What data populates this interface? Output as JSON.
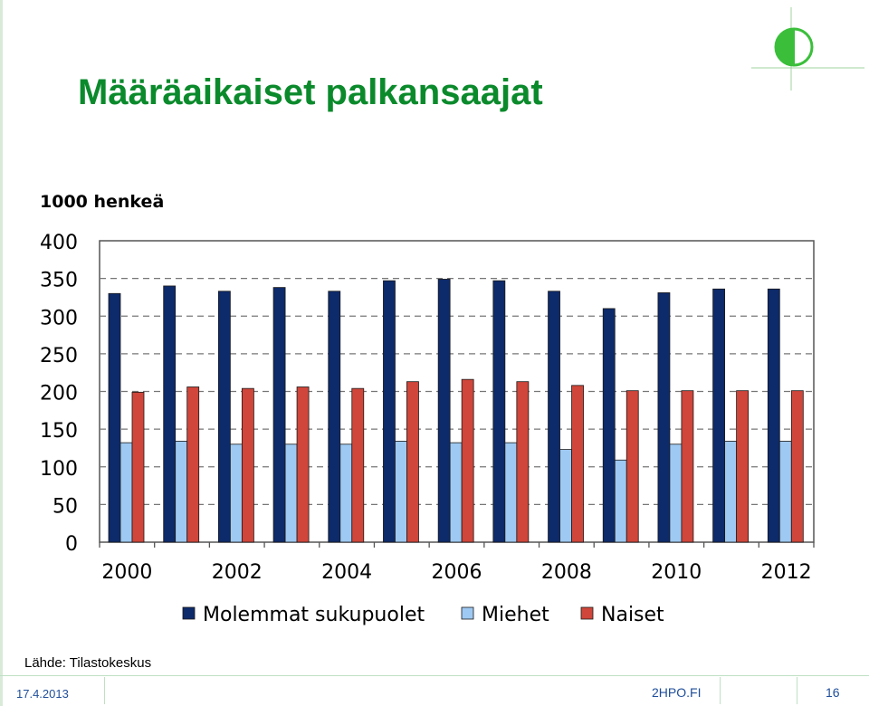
{
  "slide": {
    "title": "Määräaikaiset palkansaajat",
    "source": "Lähde: Tilastokeskus",
    "date": "17.4.2013",
    "site": "2HPO.FI",
    "page_number": "16"
  },
  "colors": {
    "title": "#0b8a2c",
    "molemmat": "#0d2a6b",
    "miehet": "#9ec9f2",
    "naiset": "#d0463a"
  },
  "chart_data": {
    "type": "bar",
    "ylabel": "1000 henkeä",
    "ylim": [
      0,
      400
    ],
    "yticks": [
      0,
      50,
      100,
      150,
      200,
      250,
      300,
      350,
      400
    ],
    "categories": [
      "2000",
      "2001",
      "2002",
      "2003",
      "2004",
      "2005",
      "2006",
      "2007",
      "2008",
      "2009",
      "2010",
      "2011",
      "2012"
    ],
    "xtick_labels": [
      "2000",
      "",
      "2002",
      "",
      "2004",
      "",
      "2006",
      "",
      "2008",
      "",
      "2010",
      "",
      "2012"
    ],
    "grid": "dashed horizontal",
    "legend_position": "bottom",
    "series": [
      {
        "name": "Molemmat sukupuolet",
        "color": "#0d2a6b",
        "values": [
          330,
          340,
          333,
          338,
          333,
          347,
          349,
          347,
          333,
          310,
          331,
          336,
          336
        ]
      },
      {
        "name": "Miehet",
        "color": "#9ec9f2",
        "values": [
          132,
          134,
          130,
          130,
          130,
          134,
          132,
          132,
          123,
          109,
          130,
          134,
          134
        ]
      },
      {
        "name": "Naiset",
        "color": "#d0463a",
        "values": [
          199,
          206,
          204,
          206,
          204,
          213,
          216,
          213,
          208,
          201,
          201,
          201,
          201
        ]
      }
    ]
  }
}
